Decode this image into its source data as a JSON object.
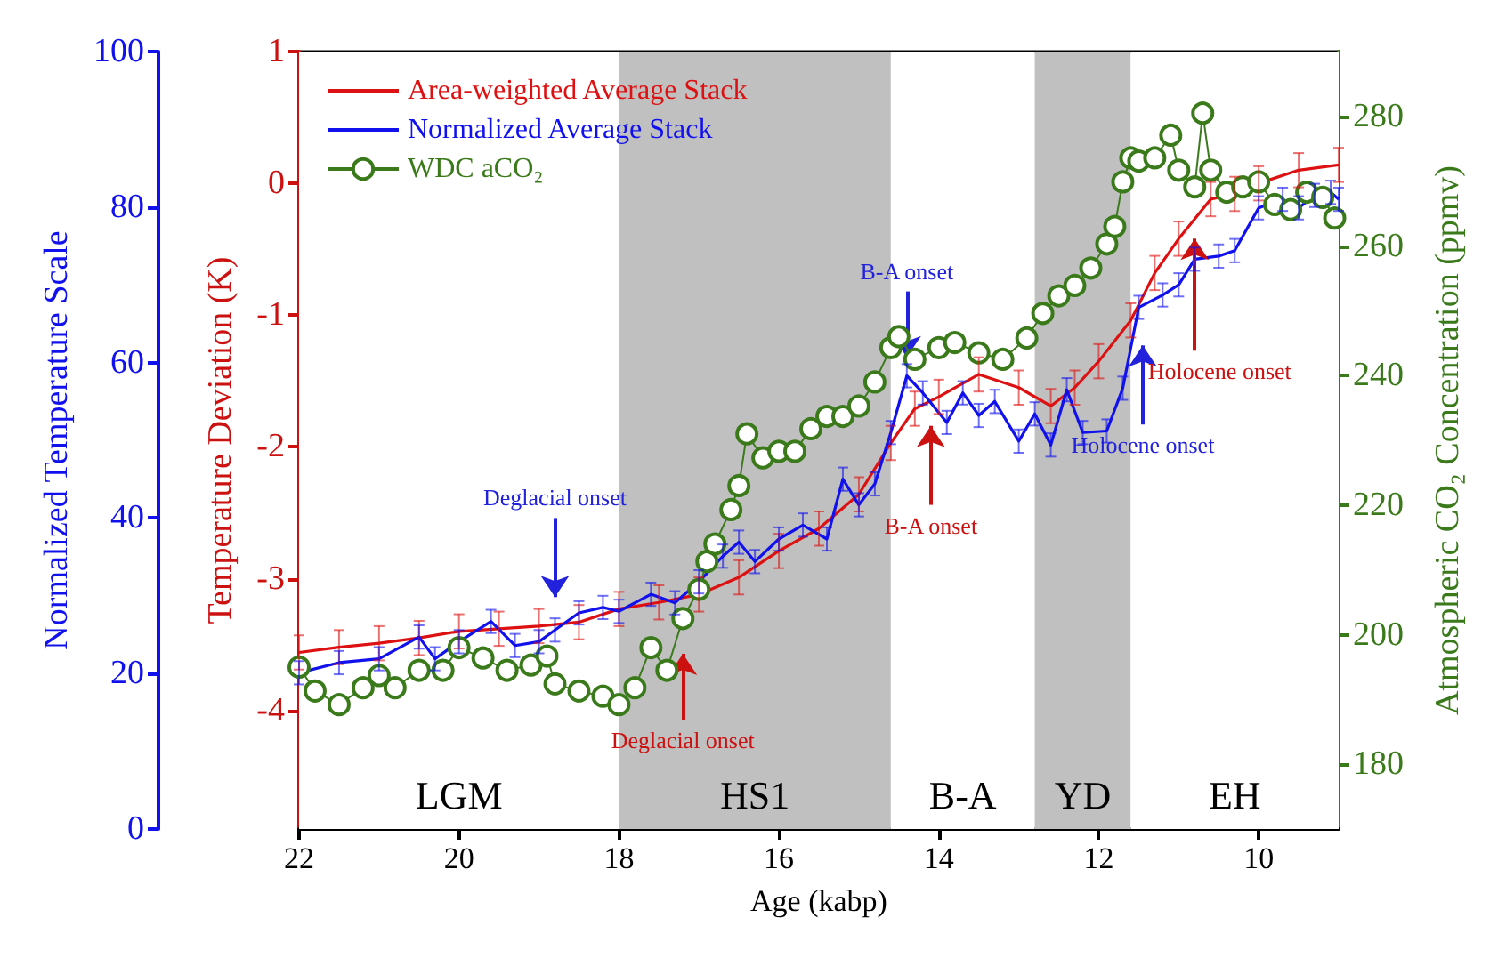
{
  "chart_data": {
    "type": "line",
    "xlabel": "Age (kabp)",
    "ylabel": "Temperature Deviation (K)",
    "y2label": "Normalized Temperature Scale",
    "y3label": "Atmospheric CO₂ Concentration (ppmv)",
    "xlim": [
      22,
      9
    ],
    "xticks": [
      22,
      20,
      18,
      16,
      14,
      12,
      10
    ],
    "ylim": [
      -4.9,
      1
    ],
    "yticks": [
      -4,
      -3,
      -2,
      -1,
      0,
      1
    ],
    "y2lim": [
      0,
      100
    ],
    "y2ticks": [
      0,
      20,
      40,
      60,
      80,
      100
    ],
    "y3lim": [
      170,
      290
    ],
    "y3ticks": [
      180,
      200,
      220,
      240,
      260,
      280
    ],
    "grid": false,
    "legend": "top left",
    "series": [
      {
        "name": "Area-weighted Average Stack",
        "color": "#dd1111",
        "marker": "none",
        "axis": "y",
        "x": [
          22,
          21.5,
          21,
          20.5,
          20,
          19.5,
          19,
          18.5,
          18,
          17.5,
          17,
          16.5,
          16,
          15.5,
          15,
          14.6,
          14.3,
          14,
          13.5,
          13,
          12.6,
          12.3,
          12,
          11.6,
          11.3,
          11,
          10.6,
          10.3,
          10,
          9.5,
          9
        ],
        "values": [
          -3.56,
          -3.52,
          -3.49,
          -3.45,
          -3.4,
          -3.38,
          -3.36,
          -3.33,
          -3.23,
          -3.18,
          -3.12,
          -2.99,
          -2.79,
          -2.62,
          -2.36,
          -1.97,
          -1.71,
          -1.62,
          -1.45,
          -1.55,
          -1.69,
          -1.55,
          -1.35,
          -1.04,
          -0.68,
          -0.42,
          -0.12,
          -0.08,
          0.0,
          0.1,
          0.14
        ],
        "errors": [
          0.13,
          0.13,
          0.13,
          0.13,
          0.13,
          0.13,
          0.13,
          0.13,
          0.13,
          0.13,
          0.13,
          0.13,
          0.13,
          0.13,
          0.13,
          0.13,
          0.13,
          0.13,
          0.13,
          0.13,
          0.13,
          0.13,
          0.13,
          0.13,
          0.13,
          0.13,
          0.13,
          0.13,
          0.13,
          0.13,
          0.13
        ]
      },
      {
        "name": "Normalized Average Stack",
        "color": "#1111ee",
        "marker": "none",
        "axis": "y2",
        "x": [
          22,
          21.5,
          21,
          20.5,
          20.3,
          20,
          19.6,
          19.3,
          19,
          18.8,
          18.5,
          18.2,
          18,
          17.6,
          17.3,
          17,
          16.7,
          16.5,
          16.3,
          16,
          15.7,
          15.4,
          15.2,
          15,
          14.8,
          14.6,
          14.4,
          14.2,
          13.9,
          13.7,
          13.5,
          13.3,
          13,
          12.8,
          12.6,
          12.4,
          12.2,
          11.9,
          11.7,
          11.5,
          11.2,
          11,
          10.8,
          10.5,
          10.3,
          10,
          9.7,
          9.5,
          9.3,
          9.1,
          9
        ],
        "values": [
          20.1,
          21.4,
          21.9,
          24.7,
          21.9,
          24.1,
          26.7,
          23.6,
          24.1,
          25.6,
          27.8,
          28.5,
          28,
          30.2,
          29.1,
          31.8,
          35.1,
          36.9,
          34.4,
          37.3,
          39.1,
          37.3,
          45,
          41.7,
          44.4,
          51,
          58.3,
          56.1,
          52.3,
          56.1,
          53.2,
          55,
          49.9,
          53.4,
          49.4,
          56.5,
          51,
          51.2,
          56.7,
          67.1,
          68.7,
          70,
          73.3,
          73.7,
          74.4,
          79.9,
          81,
          79.9,
          81.5,
          81.9,
          81
        ],
        "errors": [
          1.5,
          1.5,
          1.5,
          1.5,
          1.5,
          1.5,
          1.5,
          1.5,
          1.5,
          1.5,
          1.5,
          1.5,
          1.5,
          1.5,
          1.5,
          1.5,
          1.5,
          1.5,
          1.5,
          1.5,
          1.5,
          1.5,
          1.5,
          1.5,
          1.5,
          1.5,
          1.5,
          1.5,
          1.5,
          1.5,
          1.5,
          1.5,
          1.5,
          1.5,
          1.5,
          1.5,
          1.5,
          1.5,
          1.5,
          1.5,
          1.5,
          1.5,
          1.5,
          1.5,
          1.5,
          1.5,
          1.5,
          1.5,
          1.5,
          1.5,
          1.5
        ]
      },
      {
        "name": "WDC aCO₂",
        "color": "#3a7a1a",
        "marker": "circle",
        "axis": "y3",
        "x": [
          22,
          21.8,
          21.5,
          21.2,
          21,
          20.8,
          20.5,
          20.2,
          20,
          19.7,
          19.4,
          19.1,
          18.9,
          18.8,
          18.5,
          18.2,
          18,
          17.8,
          17.6,
          17.4,
          17.2,
          17,
          16.9,
          16.8,
          16.6,
          16.5,
          16.4,
          16.2,
          16,
          15.8,
          15.6,
          15.4,
          15.2,
          15,
          14.8,
          14.6,
          14.5,
          14.3,
          14,
          13.8,
          13.5,
          13.2,
          12.9,
          12.7,
          12.5,
          12.3,
          12.1,
          11.9,
          11.8,
          11.7,
          11.6,
          11.5,
          11.3,
          11.1,
          11,
          10.8,
          10.7,
          10.6,
          10.4,
          10.2,
          10,
          9.8,
          9.6,
          9.4,
          9.2,
          9.05
        ],
        "values": [
          195,
          191.3,
          189.2,
          191.8,
          193.7,
          191.8,
          194.5,
          194.5,
          198,
          196.4,
          194.5,
          195.3,
          196.7,
          192.4,
          191.3,
          190.5,
          189.2,
          191.8,
          198,
          194.5,
          202.5,
          207,
          211.3,
          214,
          219.3,
          223,
          231,
          227.3,
          228.3,
          228.3,
          231.8,
          233.7,
          233.7,
          235.3,
          239,
          244.3,
          246,
          242.5,
          244.3,
          245.1,
          243.5,
          242.5,
          245.8,
          249.6,
          252.3,
          253.9,
          256.6,
          260.3,
          263,
          269.9,
          273.6,
          273.1,
          273.6,
          277.1,
          271.7,
          269.1,
          280.5,
          271.7,
          268.3,
          269.1,
          269.9,
          266.4,
          265.6,
          268.3,
          267.5,
          264.3
        ]
      }
    ],
    "bands": [
      {
        "axis": "x",
        "from": 22,
        "to": 18,
        "label": "LGM",
        "color": "#ffffff"
      },
      {
        "axis": "x",
        "from": 18,
        "to": 14.6,
        "label": "HS1",
        "color": "#c0c0c0"
      },
      {
        "axis": "x",
        "from": 14.6,
        "to": 12.8,
        "label": "B-A",
        "color": "#ffffff"
      },
      {
        "axis": "x",
        "from": 12.8,
        "to": 11.6,
        "label": "YD",
        "color": "#c0c0c0"
      },
      {
        "axis": "x",
        "from": 11.6,
        "to": 9,
        "label": "EH",
        "color": "#ffffff"
      }
    ],
    "annotations": [
      "Deglacial onset",
      "Deglacial onset",
      {
        "text": "B-A onset",
        "x": 14.4,
        "y": -1.32
      },
      "B-A onset",
      "Holocene onset",
      "Holocene onset"
    ]
  }
}
